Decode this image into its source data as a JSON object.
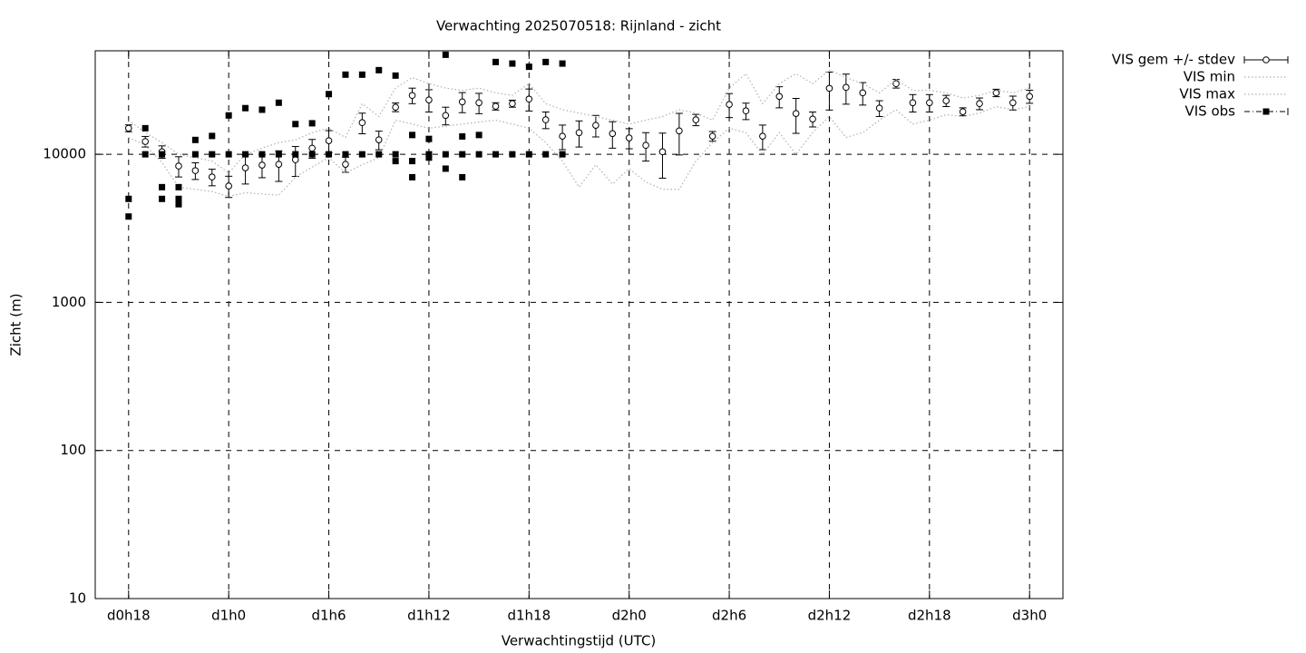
{
  "chart_data": {
    "type": "line",
    "title": "Verwachting 2025070518: Rijnland - zicht",
    "x_label": "Verwachtingstijd (UTC)",
    "y_label": "Zicht (m)",
    "xlim": [
      -2,
      56
    ],
    "xticks": [
      {
        "value": 0,
        "label": "d0h18"
      },
      {
        "value": 6,
        "label": "d1h0"
      },
      {
        "value": 12,
        "label": "d1h6"
      },
      {
        "value": 18,
        "label": "d1h12"
      },
      {
        "value": 24,
        "label": "d1h18"
      },
      {
        "value": 30,
        "label": "d2h0"
      },
      {
        "value": 36,
        "label": "d2h6"
      },
      {
        "value": 42,
        "label": "d2h12"
      },
      {
        "value": 48,
        "label": "d2h18"
      },
      {
        "value": 54,
        "label": "d3h0"
      }
    ],
    "ylim": [
      10,
      50000
    ],
    "yticks": [
      10,
      100,
      1000,
      10000
    ],
    "y_log": true,
    "grid": true,
    "legend": "outside-top-right",
    "series": [
      {
        "name": "VIS gem +/- stdev",
        "style": "errorbar",
        "color": "#000000",
        "x": [
          0,
          1,
          2,
          3,
          4,
          5,
          6,
          7,
          8,
          9,
          10,
          11,
          12,
          13,
          14,
          15,
          16,
          17,
          18,
          19,
          20,
          21,
          22,
          23,
          24,
          25,
          26,
          27,
          28,
          29,
          30,
          31,
          32,
          33,
          34,
          35,
          36,
          37,
          38,
          39,
          40,
          41,
          42,
          43,
          44,
          45,
          46,
          47,
          48,
          49,
          50,
          51,
          52,
          53,
          54
        ],
        "values": [
          15000,
          12200,
          10400,
          8330,
          7760,
          7030,
          6110,
          8100,
          8450,
          8560,
          9190,
          11000,
          12350,
          8560,
          16360,
          12530,
          20800,
          24970,
          23300,
          18300,
          22600,
          22300,
          21100,
          22000,
          23600,
          17100,
          13250,
          14000,
          15700,
          13800,
          12900,
          11500,
          10400,
          14400,
          17100,
          13250,
          21700,
          19650,
          13250,
          24600,
          18850,
          17300,
          27900,
          28300,
          26000,
          20500,
          30000,
          22300,
          22300,
          23000,
          19400,
          22000,
          26000,
          22300,
          24600
        ],
        "errors": [
          800,
          1000,
          1000,
          1300,
          1000,
          900,
          1000,
          1800,
          1500,
          2000,
          2100,
          1600,
          2100,
          1000,
          2600,
          1800,
          1400,
          3000,
          4000,
          2500,
          3500,
          3500,
          1200,
          1200,
          4000,
          2200,
          2500,
          2800,
          2600,
          2800,
          2000,
          2500,
          3500,
          4500,
          1500,
          1000,
          4000,
          2500,
          2500,
          4000,
          5000,
          2000,
          8000,
          6500,
          4500,
          2500,
          2000,
          3000,
          3000,
          2000,
          1200,
          2000,
          1500,
          2400,
          2500
        ]
      },
      {
        "name": "VIS min",
        "style": "dotted",
        "color": "#b0b0b0",
        "x": [
          0,
          1,
          2,
          3,
          4,
          5,
          6,
          7,
          8,
          9,
          10,
          11,
          12,
          13,
          14,
          15,
          16,
          17,
          18,
          19,
          20,
          21,
          22,
          23,
          24,
          25,
          26,
          27,
          28,
          29,
          30,
          31,
          32,
          33,
          34,
          35,
          36,
          37,
          38,
          39,
          40,
          41,
          42,
          43,
          44,
          45,
          46,
          47,
          48,
          49,
          50,
          51,
          52,
          53,
          54
        ],
        "values": [
          13000,
          11500,
          8800,
          6000,
          5800,
          5600,
          5200,
          5500,
          5400,
          5300,
          7000,
          8200,
          9500,
          7500,
          8500,
          9500,
          17000,
          16000,
          15000,
          15500,
          16000,
          16500,
          17000,
          16000,
          15000,
          12000,
          9000,
          6000,
          8500,
          6300,
          8000,
          6500,
          5800,
          5800,
          9000,
          12000,
          15000,
          14000,
          10000,
          14000,
          10000,
          14000,
          18000,
          13000,
          14000,
          17000,
          20000,
          16000,
          17000,
          18500,
          18000,
          19000,
          21000,
          20000,
          21000
        ]
      },
      {
        "name": "VIS max",
        "style": "dotted",
        "color": "#b0b0b0",
        "x": [
          0,
          1,
          2,
          3,
          4,
          5,
          6,
          7,
          8,
          9,
          10,
          11,
          12,
          13,
          14,
          15,
          16,
          17,
          18,
          19,
          20,
          21,
          22,
          23,
          24,
          25,
          26,
          27,
          28,
          29,
          30,
          31,
          32,
          33,
          34,
          35,
          36,
          37,
          38,
          39,
          40,
          41,
          42,
          43,
          44,
          45,
          46,
          47,
          48,
          49,
          50,
          51,
          52,
          53,
          54
        ],
        "values": [
          17000,
          14000,
          12000,
          10000,
          9500,
          9000,
          7500,
          10000,
          11000,
          12000,
          12500,
          14000,
          15000,
          13000,
          22000,
          18000,
          28000,
          33000,
          30000,
          28000,
          27000,
          28000,
          26000,
          25000,
          30000,
          22000,
          20000,
          19000,
          18000,
          17000,
          16000,
          17000,
          18000,
          20000,
          19000,
          17000,
          28000,
          35000,
          22000,
          30000,
          35000,
          30000,
          37000,
          33000,
          30000,
          26000,
          32000,
          27000,
          27000,
          26000,
          24000,
          25000,
          27000,
          26000,
          28000
        ]
      },
      {
        "name": "VIS obs",
        "style": "points",
        "color": "#000000",
        "x": [
          0,
          0,
          1,
          1,
          2,
          2,
          2,
          3,
          3,
          3,
          4,
          4,
          5,
          5,
          6,
          6,
          7,
          7,
          8,
          8,
          9,
          9,
          10,
          10,
          11,
          11,
          12,
          12,
          13,
          13,
          14,
          14,
          15,
          15,
          16,
          16,
          16,
          17,
          17,
          17,
          18,
          18,
          18,
          19,
          19,
          19,
          20,
          20,
          20,
          21,
          21,
          22,
          22,
          23,
          23,
          24,
          24,
          25,
          25,
          26,
          26
        ],
        "values": [
          5000,
          3800,
          15000,
          10000,
          10000,
          6000,
          5000,
          6000,
          5000,
          4600,
          12500,
          10000,
          13300,
          10000,
          18300,
          10000,
          20500,
          10000,
          20000,
          10000,
          22300,
          10000,
          16000,
          10000,
          16200,
          10000,
          25500,
          10000,
          34500,
          10000,
          34500,
          10000,
          37000,
          10000,
          34000,
          10000,
          9000,
          13500,
          9000,
          7000,
          12700,
          10000,
          9500,
          47000,
          10000,
          8000,
          13200,
          10000,
          7000,
          13500,
          10000,
          42000,
          10000,
          41000,
          10000,
          39000,
          10000,
          42000,
          10000,
          41000,
          10000
        ]
      }
    ]
  }
}
